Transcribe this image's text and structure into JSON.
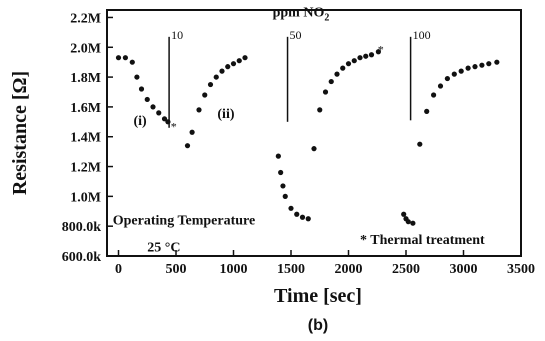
{
  "chart_data": {
    "type": "scatter",
    "xlabel": "Time [sec]",
    "ylabel": "Resistance [Ω]",
    "xlim": [
      -100,
      3500
    ],
    "ylim": [
      600000,
      2250000
    ],
    "x_ticks": [
      {
        "value": 0,
        "label": "0"
      },
      {
        "value": 500,
        "label": "500"
      },
      {
        "value": 1000,
        "label": "1000"
      },
      {
        "value": 1500,
        "label": "1500"
      },
      {
        "value": 2000,
        "label": "2000"
      },
      {
        "value": 2500,
        "label": "2500"
      },
      {
        "value": 3000,
        "label": "3000"
      },
      {
        "value": 3500,
        "label": "3500"
      }
    ],
    "y_ticks": [
      {
        "value": 600000,
        "label": "600.0k"
      },
      {
        "value": 800000,
        "label": "800.0k"
      },
      {
        "value": 1000000,
        "label": "1.0M"
      },
      {
        "value": 1200000,
        "label": "1.2M"
      },
      {
        "value": 1400000,
        "label": "1.4M"
      },
      {
        "value": 1600000,
        "label": "1.6M"
      },
      {
        "value": 1800000,
        "label": "1.8M"
      },
      {
        "value": 2000000,
        "label": "2.0M"
      },
      {
        "value": 2200000,
        "label": "2.2M"
      }
    ],
    "series": [
      {
        "name": "",
        "x": [
          0,
          60,
          120,
          160,
          200,
          250,
          300,
          350,
          400,
          430,
          600,
          640,
          700,
          750,
          800,
          850,
          900,
          950,
          1000,
          1050,
          1100,
          1390,
          1410,
          1430,
          1450,
          1500,
          1550,
          1600,
          1650,
          1700,
          1750,
          1800,
          1850,
          1900,
          1950,
          2000,
          2050,
          2100,
          2150,
          2200,
          2260,
          2480,
          2500,
          2520,
          2560,
          2620,
          2680,
          2740,
          2800,
          2860,
          2920,
          2980,
          3040,
          3100,
          3160,
          3220,
          3290
        ],
        "y": [
          1930000,
          1930000,
          1900000,
          1800000,
          1720000,
          1650000,
          1600000,
          1560000,
          1520000,
          1500000,
          1340000,
          1430000,
          1580000,
          1680000,
          1750000,
          1800000,
          1840000,
          1870000,
          1890000,
          1910000,
          1930000,
          1270000,
          1160000,
          1070000,
          1000000,
          920000,
          880000,
          860000,
          850000,
          1320000,
          1580000,
          1700000,
          1770000,
          1820000,
          1860000,
          1890000,
          1910000,
          1930000,
          1940000,
          1950000,
          1970000,
          880000,
          850000,
          830000,
          820000,
          1350000,
          1570000,
          1680000,
          1740000,
          1790000,
          1820000,
          1840000,
          1860000,
          1870000,
          1880000,
          1890000,
          1900000
        ]
      }
    ],
    "markers": [
      {
        "name": "treatment-marker-1",
        "x": 480,
        "y": 1470000
      },
      {
        "name": "treatment-marker-2",
        "x": 2280,
        "y": 1985000
      }
    ],
    "vertical_lines": [
      {
        "x": 440,
        "label": "10",
        "y_top": 2070000,
        "y_bottom": 1460000
      },
      {
        "x": 1470,
        "label": "50",
        "y_top": 2070000,
        "y_bottom": 1500000
      },
      {
        "x": 2540,
        "label": "100",
        "y_top": 2070000,
        "y_bottom": 1510000
      }
    ],
    "annotations": [
      {
        "text": "ppm NO",
        "x": 1340,
        "y": 2205000
      },
      {
        "text": "(i)",
        "x": 130,
        "y": 1480000
      },
      {
        "text": "(ii)",
        "x": 860,
        "y": 1525000
      },
      {
        "text": "Operating Temperature",
        "x": -50,
        "y": 810000
      },
      {
        "text": "25 °C",
        "x": 250,
        "y": 630000
      },
      {
        "text": "* Thermal treatment",
        "x": 2100,
        "y": 680000
      }
    ],
    "subscript": "2",
    "panel_label": "(b)"
  }
}
